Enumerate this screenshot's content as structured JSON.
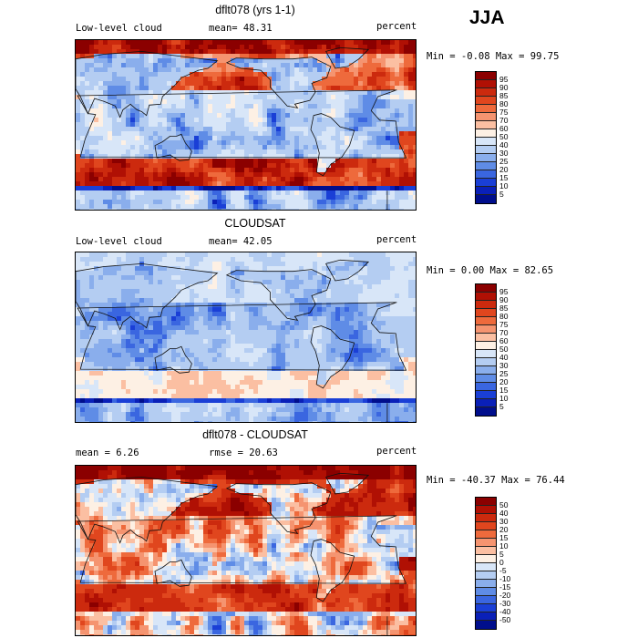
{
  "season": "JJA",
  "chart_data": [
    {
      "type": "heatmap",
      "title": "dflt078 (yrs 1-1)",
      "left_label": "Low-level cloud",
      "mean_text": "mean=  48.31",
      "right_label": "percent",
      "minmax_text": "Min =  -0.08 Max =  99.75",
      "min": -0.08,
      "max": 99.75,
      "mean": 48.31,
      "units": "percent",
      "colorbar": {
        "levels": [
          "95",
          "90",
          "85",
          "80",
          "75",
          "70",
          "60",
          "50",
          "40",
          "30",
          "25",
          "20",
          "15",
          "10",
          "5"
        ],
        "colors": [
          "#8b0000",
          "#b01004",
          "#cc2a0e",
          "#e0461e",
          "#ee6a3c",
          "#f59470",
          "#fbbfa2",
          "#fdf0e4",
          "#d8e6f8",
          "#b4cdf2",
          "#8aaeec",
          "#5f8ce6",
          "#3a66e0",
          "#1a3fd6",
          "#0a20b8",
          "#000e8c"
        ]
      },
      "field": "model"
    },
    {
      "type": "heatmap",
      "title": "CLOUDSAT",
      "left_label": "Low-level cloud",
      "mean_text": "mean=  42.05",
      "right_label": "percent",
      "minmax_text": "Min =   0.00 Max =  82.65",
      "min": 0.0,
      "max": 82.65,
      "mean": 42.05,
      "units": "percent",
      "colorbar": {
        "levels": [
          "95",
          "90",
          "85",
          "80",
          "75",
          "70",
          "60",
          "50",
          "40",
          "30",
          "25",
          "20",
          "15",
          "10",
          "5"
        ],
        "colors": [
          "#8b0000",
          "#b01004",
          "#cc2a0e",
          "#e0461e",
          "#ee6a3c",
          "#f59470",
          "#fbbfa2",
          "#fdf0e4",
          "#d8e6f8",
          "#b4cdf2",
          "#8aaeec",
          "#5f8ce6",
          "#3a66e0",
          "#1a3fd6",
          "#0a20b8",
          "#000e8c"
        ]
      },
      "field": "obs"
    },
    {
      "type": "heatmap",
      "title": "dflt078 - CLOUDSAT",
      "left_label": "mean =    6.26",
      "mean_text": "rmse =  20.63",
      "right_label": "percent",
      "minmax_text": "Min = -40.37 Max =  76.44",
      "min": -40.37,
      "max": 76.44,
      "mean": 6.26,
      "rmse": 20.63,
      "units": "percent",
      "colorbar": {
        "levels": [
          "50",
          "40",
          "30",
          "20",
          "15",
          "10",
          "5",
          "0",
          "-5",
          "-10",
          "-15",
          "-20",
          "-30",
          "-40",
          "-50"
        ],
        "colors": [
          "#8b0000",
          "#b01004",
          "#cc2a0e",
          "#e0461e",
          "#ee6a3c",
          "#f59470",
          "#fbbfa2",
          "#fdf0e4",
          "#d8e6f8",
          "#b4cdf2",
          "#8aaeec",
          "#5f8ce6",
          "#3a66e0",
          "#1a3fd6",
          "#0a20b8",
          "#000e8c"
        ]
      },
      "field": "diff"
    }
  ]
}
